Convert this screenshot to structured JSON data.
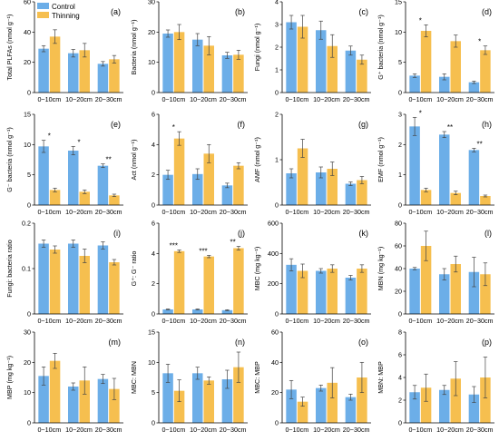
{
  "colors": {
    "control": "#6CAEE8",
    "thinning": "#F6BF4F"
  },
  "legend": [
    {
      "label": "Control",
      "color": "#6CAEE8"
    },
    {
      "label": "Thinning",
      "color": "#F6BF4F"
    }
  ],
  "chart_data": [
    {
      "id": "a",
      "panel_label": "(a)",
      "type": "bar",
      "ylabel": "Total PLFAs (nmol g⁻¹)",
      "ylim": [
        0,
        60
      ],
      "yticks": [
        0,
        20,
        40,
        60
      ],
      "categories": [
        "0~10cm",
        "10~20cm",
        "20~30cm"
      ],
      "show_xticks": false,
      "series": [
        {
          "name": "Control",
          "values": [
            29,
            26,
            19
          ],
          "errors": [
            2,
            2.5,
            1.5
          ]
        },
        {
          "name": "Thinning",
          "values": [
            37,
            28,
            22
          ],
          "errors": [
            4.5,
            4.5,
            2.5
          ]
        }
      ],
      "significance": [
        "",
        "",
        ""
      ]
    },
    {
      "id": "b",
      "panel_label": "(b)",
      "type": "bar",
      "ylabel": "Bacteria (nmol g⁻¹)",
      "ylim": [
        0,
        30
      ],
      "yticks": [
        0,
        10,
        20,
        30
      ],
      "categories": [
        "0~10cm",
        "10~20cm",
        "20~30cm"
      ],
      "show_xticks": false,
      "series": [
        {
          "name": "Control",
          "values": [
            19.5,
            17.5,
            12.3
          ],
          "errors": [
            1.2,
            2,
            1
          ]
        },
        {
          "name": "Thinning",
          "values": [
            20,
            15.5,
            12.5
          ],
          "errors": [
            2.5,
            3,
            1.5
          ]
        }
      ],
      "significance": [
        "",
        "",
        ""
      ]
    },
    {
      "id": "c",
      "panel_label": "(c)",
      "type": "bar",
      "ylabel": "Fungi (nmol g⁻¹)",
      "ylim": [
        0,
        4
      ],
      "yticks": [
        0,
        1,
        2,
        3,
        4
      ],
      "categories": [
        "0~10cm",
        "10~20cm",
        "20~30cm"
      ],
      "show_xticks": false,
      "series": [
        {
          "name": "Control",
          "values": [
            3.1,
            2.75,
            1.85
          ],
          "errors": [
            0.3,
            0.4,
            0.2
          ]
        },
        {
          "name": "Thinning",
          "values": [
            2.9,
            2.05,
            1.45
          ],
          "errors": [
            0.5,
            0.5,
            0.2
          ]
        }
      ],
      "significance": [
        "",
        "",
        ""
      ]
    },
    {
      "id": "d",
      "panel_label": "(d)",
      "type": "bar",
      "ylabel": "G⁺ bacteria (nmol g⁻¹)",
      "ylim": [
        0,
        15
      ],
      "yticks": [
        0,
        5,
        10,
        15
      ],
      "categories": [
        "0~10cm",
        "10~20cm",
        "20~30cm"
      ],
      "show_xticks": false,
      "series": [
        {
          "name": "Control",
          "values": [
            2.8,
            2.6,
            1.7
          ],
          "errors": [
            0.3,
            0.5,
            0.2
          ]
        },
        {
          "name": "Thinning",
          "values": [
            10.2,
            8.5,
            7
          ],
          "errors": [
            1,
            1,
            0.7
          ]
        }
      ],
      "significance": [
        "*",
        "",
        "*"
      ]
    },
    {
      "id": "e",
      "panel_label": "(e)",
      "type": "bar",
      "ylabel": "G⁻ bacteria (nmol g⁻¹)",
      "ylim": [
        0,
        15
      ],
      "yticks": [
        0,
        5,
        10,
        15
      ],
      "categories": [
        "0~10cm",
        "10~20cm",
        "20~30cm"
      ],
      "show_xticks": true,
      "series": [
        {
          "name": "Control",
          "values": [
            9.7,
            9,
            6.5
          ],
          "errors": [
            1,
            0.7,
            0.3
          ]
        },
        {
          "name": "Thinning",
          "values": [
            2.5,
            2.2,
            1.6
          ],
          "errors": [
            0.3,
            0.3,
            0.2
          ]
        }
      ],
      "significance": [
        "*",
        "*",
        "**"
      ]
    },
    {
      "id": "f",
      "panel_label": "(f)",
      "type": "bar",
      "ylabel": "Act (nmol g⁻¹)",
      "ylim": [
        0,
        6
      ],
      "yticks": [
        0,
        2,
        4,
        6
      ],
      "categories": [
        "0~10cm",
        "10~20cm",
        "20~30cm"
      ],
      "show_xticks": true,
      "series": [
        {
          "name": "Control",
          "values": [
            2,
            2.05,
            1.3
          ],
          "errors": [
            0.3,
            0.35,
            0.15
          ]
        },
        {
          "name": "Thinning",
          "values": [
            4.4,
            3.4,
            2.6
          ],
          "errors": [
            0.45,
            0.6,
            0.2
          ]
        }
      ],
      "significance": [
        "*",
        "",
        ""
      ]
    },
    {
      "id": "g",
      "panel_label": "(g)",
      "type": "bar",
      "ylabel": "AMF (nmol g⁻¹)",
      "ylim": [
        0,
        2
      ],
      "yticks": [
        0,
        1,
        2
      ],
      "categories": [
        "0~10cm",
        "10~20cm",
        "20~30cm"
      ],
      "show_xticks": true,
      "series": [
        {
          "name": "Control",
          "values": [
            0.7,
            0.72,
            0.47
          ],
          "errors": [
            0.1,
            0.12,
            0.04
          ]
        },
        {
          "name": "Thinning",
          "values": [
            1.25,
            0.8,
            0.55
          ],
          "errors": [
            0.2,
            0.15,
            0.08
          ]
        }
      ],
      "significance": [
        "",
        "",
        ""
      ]
    },
    {
      "id": "h",
      "panel_label": "(h)",
      "type": "bar",
      "ylabel": "EMF (nmol g⁻¹)",
      "ylim": [
        0,
        3
      ],
      "yticks": [
        0,
        1,
        2,
        3
      ],
      "categories": [
        "0~10cm",
        "10~20cm",
        "20~30cm"
      ],
      "show_xticks": true,
      "series": [
        {
          "name": "Control",
          "values": [
            2.6,
            2.33,
            1.82
          ],
          "errors": [
            0.3,
            0.1,
            0.06
          ]
        },
        {
          "name": "Thinning",
          "values": [
            0.5,
            0.4,
            0.3
          ],
          "errors": [
            0.06,
            0.06,
            0.03
          ]
        }
      ],
      "significance": [
        "*",
        "**",
        "**"
      ]
    },
    {
      "id": "i",
      "panel_label": "(i)",
      "type": "bar",
      "ylabel": "Fungi: bacteria ratio",
      "ylim": [
        0,
        0.2
      ],
      "yticks": [
        0,
        0.1,
        0.2
      ],
      "ytick_labels": [
        "0",
        "0.1",
        "0.2"
      ],
      "categories": [
        "0~10cm",
        "10~20cm",
        "20~30cm"
      ],
      "show_xticks": false,
      "series": [
        {
          "name": "Control",
          "values": [
            0.155,
            0.155,
            0.151
          ],
          "errors": [
            0.008,
            0.008,
            0.008
          ]
        },
        {
          "name": "Thinning",
          "values": [
            0.142,
            0.128,
            0.114
          ],
          "errors": [
            0.008,
            0.015,
            0.006
          ]
        }
      ],
      "significance": [
        "",
        "",
        ""
      ]
    },
    {
      "id": "j",
      "panel_label": "(j)",
      "type": "bar",
      "ylabel": "G⁺: G⁻ ratio",
      "ylim": [
        0,
        6
      ],
      "yticks": [
        0,
        2,
        4,
        6
      ],
      "categories": [
        "0~10cm",
        "10~20cm",
        "20~30cm"
      ],
      "show_xticks": false,
      "series": [
        {
          "name": "Control",
          "values": [
            0.3,
            0.3,
            0.25
          ],
          "errors": [
            0.03,
            0.03,
            0.03
          ]
        },
        {
          "name": "Thinning",
          "values": [
            4.15,
            3.8,
            4.35
          ],
          "errors": [
            0.08,
            0.08,
            0.12
          ]
        }
      ],
      "significance": [
        "***",
        "***",
        "**"
      ]
    },
    {
      "id": "k",
      "panel_label": "(k)",
      "type": "bar",
      "ylabel": "MBC (mg kg⁻¹)",
      "ylim": [
        0,
        600
      ],
      "yticks": [
        0,
        200,
        400,
        600
      ],
      "categories": [
        "0~10cm",
        "10~20cm",
        "20~30cm"
      ],
      "show_xticks": false,
      "series": [
        {
          "name": "Control",
          "values": [
            325,
            285,
            240
          ],
          "errors": [
            40,
            15,
            15
          ]
        },
        {
          "name": "Thinning",
          "values": [
            285,
            300,
            300
          ],
          "errors": [
            45,
            25,
            25
          ]
        }
      ],
      "significance": [
        "",
        "",
        ""
      ]
    },
    {
      "id": "l",
      "panel_label": "(l)",
      "type": "bar",
      "ylabel": "MBN (mg kg⁻¹)",
      "ylim": [
        0,
        80
      ],
      "yticks": [
        0,
        20,
        40,
        60,
        80
      ],
      "categories": [
        "0~10cm",
        "10~20cm",
        "20~30cm"
      ],
      "show_xticks": false,
      "series": [
        {
          "name": "Control",
          "values": [
            40,
            35,
            37
          ],
          "errors": [
            1,
            5,
            13
          ]
        },
        {
          "name": "Thinning",
          "values": [
            60,
            44,
            35
          ],
          "errors": [
            13,
            7,
            10
          ]
        }
      ],
      "significance": [
        "",
        "",
        ""
      ]
    },
    {
      "id": "m",
      "panel_label": "(m)",
      "type": "bar",
      "ylabel": "MBP (mg kg⁻¹)",
      "ylim": [
        0,
        30
      ],
      "yticks": [
        0,
        10,
        20,
        30
      ],
      "categories": [
        "0~10cm",
        "10~20cm",
        "20~30cm"
      ],
      "show_xticks": true,
      "series": [
        {
          "name": "Control",
          "values": [
            15.5,
            12,
            14.5
          ],
          "errors": [
            3,
            1.2,
            1.5
          ]
        },
        {
          "name": "Thinning",
          "values": [
            20.5,
            14,
            11.2
          ],
          "errors": [
            2.5,
            4.5,
            3.5
          ]
        }
      ],
      "significance": [
        "",
        "",
        ""
      ]
    },
    {
      "id": "n",
      "panel_label": "(n)",
      "type": "bar",
      "ylabel": "MBC: MBN",
      "ylim": [
        0,
        15
      ],
      "yticks": [
        0,
        5,
        10,
        15
      ],
      "categories": [
        "0~10cm",
        "10~20cm",
        "20~30cm"
      ],
      "show_xticks": true,
      "series": [
        {
          "name": "Control",
          "values": [
            8.2,
            8.2,
            7.2
          ],
          "errors": [
            1.5,
            1,
            1.5
          ]
        },
        {
          "name": "Thinning",
          "values": [
            5.3,
            7,
            9.2
          ],
          "errors": [
            1.8,
            0.6,
            2.5
          ]
        }
      ],
      "significance": [
        "",
        "",
        ""
      ]
    },
    {
      "id": "o",
      "panel_label": "(o)",
      "type": "bar",
      "ylabel": "MBC: MBP",
      "ylim": [
        0,
        60
      ],
      "yticks": [
        0,
        20,
        40,
        60
      ],
      "categories": [
        "0~10cm",
        "10~20cm",
        "20~30cm"
      ],
      "show_xticks": true,
      "series": [
        {
          "name": "Control",
          "values": [
            22,
            23,
            17
          ],
          "errors": [
            6,
            2,
            2
          ]
        },
        {
          "name": "Thinning",
          "values": [
            14,
            26.5,
            30
          ],
          "errors": [
            3,
            10,
            10
          ]
        }
      ],
      "significance": [
        "",
        "",
        ""
      ]
    },
    {
      "id": "p",
      "panel_label": "(p)",
      "type": "bar",
      "ylabel": "MBN: MBP",
      "ylim": [
        0,
        8
      ],
      "yticks": [
        0,
        2,
        4,
        6,
        8
      ],
      "categories": [
        "0~10cm",
        "10~20cm",
        "20~30cm"
      ],
      "show_xticks": true,
      "series": [
        {
          "name": "Control",
          "values": [
            2.7,
            2.9,
            2.5
          ],
          "errors": [
            0.6,
            0.4,
            0.7
          ]
        },
        {
          "name": "Thinning",
          "values": [
            3.1,
            3.9,
            4
          ],
          "errors": [
            1.2,
            1.5,
            1.8
          ]
        }
      ],
      "significance": [
        "",
        "",
        ""
      ]
    }
  ]
}
